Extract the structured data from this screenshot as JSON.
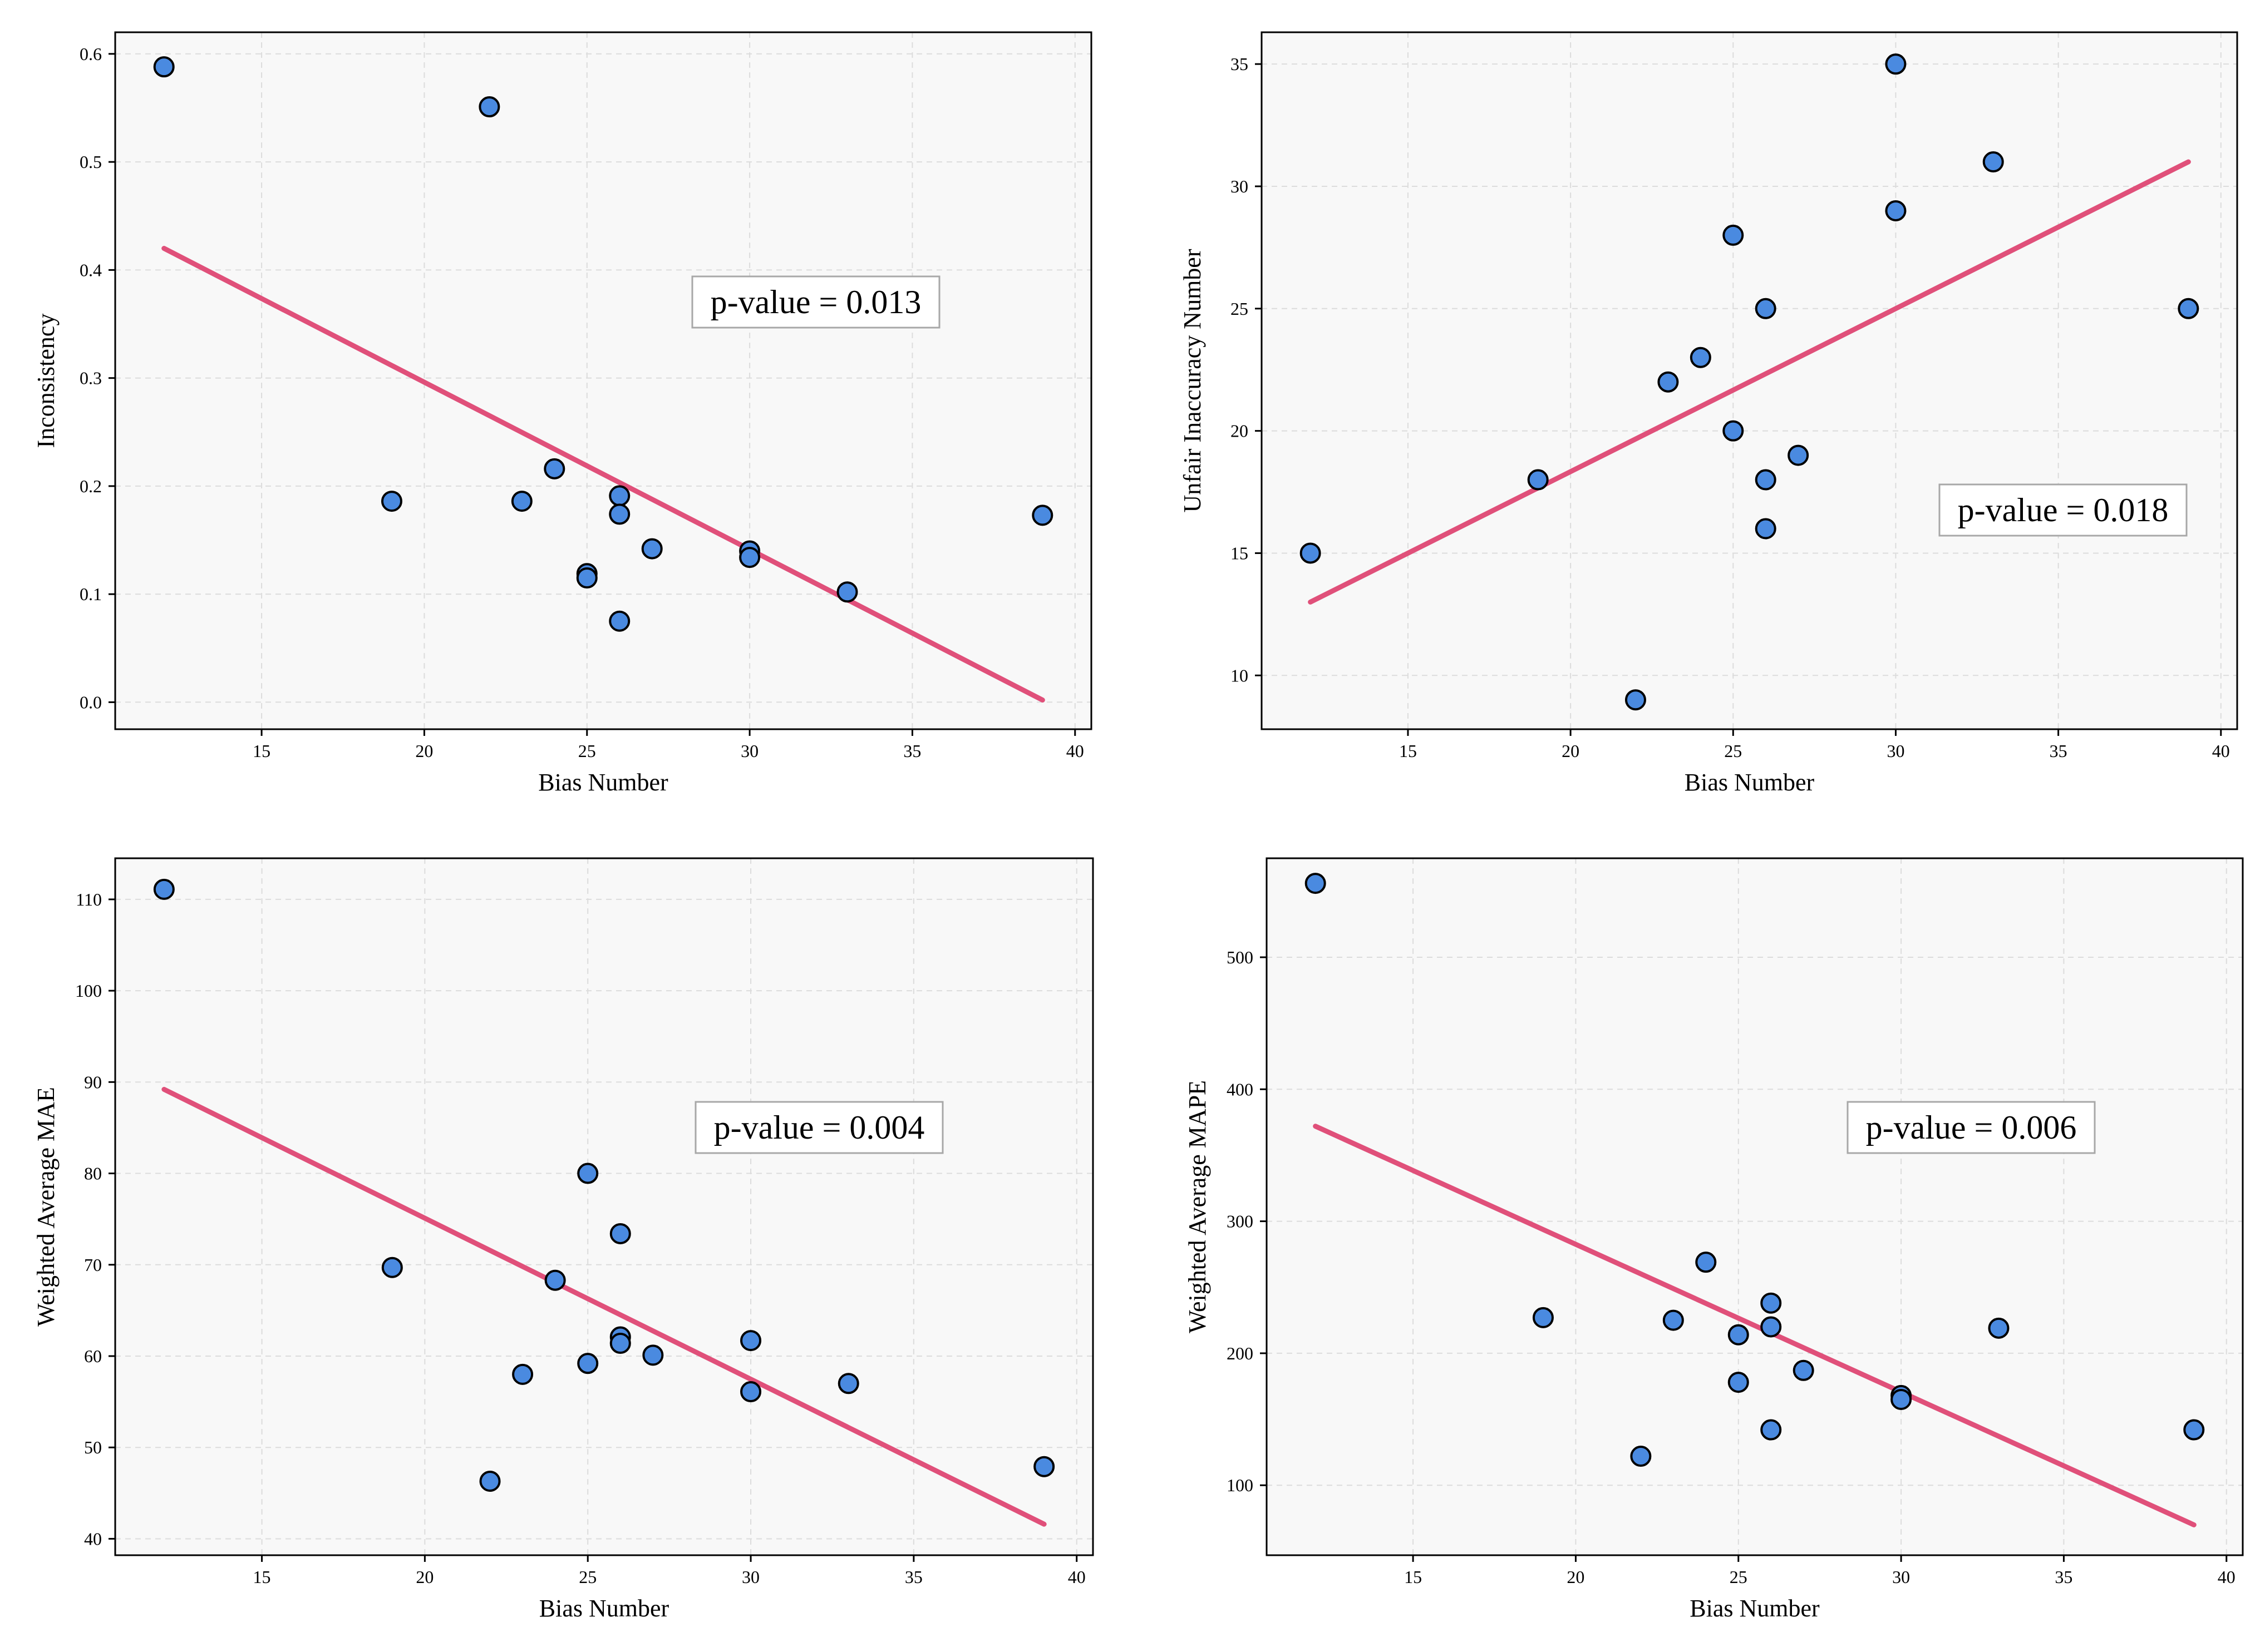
{
  "colors": {
    "point": "#4a8ae0",
    "fit_line": "#e0507a",
    "panel_bg": "#f8f8f8",
    "grid": "#dcdcdc"
  },
  "chart_data": [
    {
      "type": "scatter",
      "xlabel": "Bias Number",
      "ylabel": "Inconsistency",
      "annotation": "p-value = 0.013",
      "xlim": [
        10.5,
        40.5
      ],
      "ylim": [
        -0.025,
        0.62
      ],
      "xticks": [
        15,
        20,
        25,
        30,
        35,
        40
      ],
      "xtick_labels": [
        "15",
        "20",
        "25",
        "30",
        "35",
        "40"
      ],
      "yticks": [
        0.0,
        0.1,
        0.2,
        0.3,
        0.4,
        0.5,
        0.6
      ],
      "ytick_labels": [
        "0.0",
        "0.1",
        "0.2",
        "0.3",
        "0.4",
        "0.5",
        "0.6"
      ],
      "grid": true,
      "points": [
        {
          "x": 12,
          "y": 0.588
        },
        {
          "x": 22,
          "y": 0.551
        },
        {
          "x": 19,
          "y": 0.186
        },
        {
          "x": 23,
          "y": 0.186
        },
        {
          "x": 24,
          "y": 0.216
        },
        {
          "x": 26,
          "y": 0.191
        },
        {
          "x": 26,
          "y": 0.174
        },
        {
          "x": 25,
          "y": 0.119
        },
        {
          "x": 25,
          "y": 0.115
        },
        {
          "x": 26,
          "y": 0.075
        },
        {
          "x": 27,
          "y": 0.142
        },
        {
          "x": 30,
          "y": 0.14
        },
        {
          "x": 30,
          "y": 0.134
        },
        {
          "x": 33,
          "y": 0.102
        },
        {
          "x": 39,
          "y": 0.173
        }
      ],
      "fit": {
        "x": [
          12,
          39
        ],
        "y": [
          0.42,
          0.002
        ]
      }
    },
    {
      "type": "scatter",
      "xlabel": "Bias Number",
      "ylabel": "Unfair Inaccuracy Number",
      "annotation": "p-value = 0.018",
      "xlim": [
        10.5,
        40.5
      ],
      "ylim": [
        7.8,
        36.3
      ],
      "xticks": [
        15,
        20,
        25,
        30,
        35,
        40
      ],
      "xtick_labels": [
        "15",
        "20",
        "25",
        "30",
        "35",
        "40"
      ],
      "yticks": [
        10,
        15,
        20,
        25,
        30,
        35
      ],
      "ytick_labels": [
        "10",
        "15",
        "20",
        "25",
        "30",
        "35"
      ],
      "grid": true,
      "points": [
        {
          "x": 12,
          "y": 15
        },
        {
          "x": 19,
          "y": 18
        },
        {
          "x": 22,
          "y": 9
        },
        {
          "x": 23,
          "y": 22
        },
        {
          "x": 24,
          "y": 23
        },
        {
          "x": 25,
          "y": 28
        },
        {
          "x": 25,
          "y": 20
        },
        {
          "x": 26,
          "y": 25
        },
        {
          "x": 26,
          "y": 18
        },
        {
          "x": 26,
          "y": 16
        },
        {
          "x": 27,
          "y": 19
        },
        {
          "x": 30,
          "y": 35
        },
        {
          "x": 30,
          "y": 29
        },
        {
          "x": 33,
          "y": 31
        },
        {
          "x": 39,
          "y": 25
        }
      ],
      "fit": {
        "x": [
          12,
          39
        ],
        "y": [
          13.0,
          31.0
        ]
      }
    },
    {
      "type": "scatter",
      "xlabel": "Bias Number",
      "ylabel": "Weighted Average MAE",
      "annotation": "p-value = 0.004",
      "xlim": [
        10.5,
        40.5
      ],
      "ylim": [
        38.2,
        114.5
      ],
      "xticks": [
        15,
        20,
        25,
        30,
        35,
        40
      ],
      "xtick_labels": [
        "15",
        "20",
        "25",
        "30",
        "35",
        "40"
      ],
      "yticks": [
        40,
        50,
        60,
        70,
        80,
        90,
        100,
        110
      ],
      "ytick_labels": [
        "40",
        "50",
        "60",
        "70",
        "80",
        "90",
        "100",
        "110"
      ],
      "grid": true,
      "points": [
        {
          "x": 12,
          "y": 111.1
        },
        {
          "x": 19,
          "y": 69.7
        },
        {
          "x": 22,
          "y": 46.3
        },
        {
          "x": 23,
          "y": 58.0
        },
        {
          "x": 24,
          "y": 68.3
        },
        {
          "x": 25,
          "y": 80.0
        },
        {
          "x": 25,
          "y": 59.2
        },
        {
          "x": 26,
          "y": 73.4
        },
        {
          "x": 26,
          "y": 62.1
        },
        {
          "x": 26,
          "y": 61.4
        },
        {
          "x": 27,
          "y": 60.1
        },
        {
          "x": 30,
          "y": 61.7
        },
        {
          "x": 30,
          "y": 56.1
        },
        {
          "x": 33,
          "y": 57.0
        },
        {
          "x": 39,
          "y": 47.9
        }
      ],
      "fit": {
        "x": [
          12,
          39
        ],
        "y": [
          89.2,
          41.6
        ]
      }
    },
    {
      "type": "scatter",
      "xlabel": "Bias Number",
      "ylabel": "Weighted Average MAPE",
      "annotation": "p-value = 0.006",
      "xlim": [
        10.5,
        40.5
      ],
      "ylim": [
        47,
        575
      ],
      "xticks": [
        15,
        20,
        25,
        30,
        35,
        40
      ],
      "xtick_labels": [
        "15",
        "20",
        "25",
        "30",
        "35",
        "40"
      ],
      "yticks": [
        100,
        200,
        300,
        400,
        500
      ],
      "ytick_labels": [
        "100",
        "200",
        "300",
        "400",
        "500"
      ],
      "grid": true,
      "points": [
        {
          "x": 12,
          "y": 556
        },
        {
          "x": 19,
          "y": 227
        },
        {
          "x": 22,
          "y": 122
        },
        {
          "x": 23,
          "y": 225
        },
        {
          "x": 24,
          "y": 269
        },
        {
          "x": 25,
          "y": 214
        },
        {
          "x": 25,
          "y": 178
        },
        {
          "x": 26,
          "y": 238
        },
        {
          "x": 26,
          "y": 220
        },
        {
          "x": 26,
          "y": 142
        },
        {
          "x": 27,
          "y": 187
        },
        {
          "x": 30,
          "y": 168
        },
        {
          "x": 30,
          "y": 165
        },
        {
          "x": 33,
          "y": 219
        },
        {
          "x": 39,
          "y": 142
        }
      ],
      "fit": {
        "x": [
          12,
          39
        ],
        "y": [
          372,
          70
        ]
      }
    }
  ]
}
